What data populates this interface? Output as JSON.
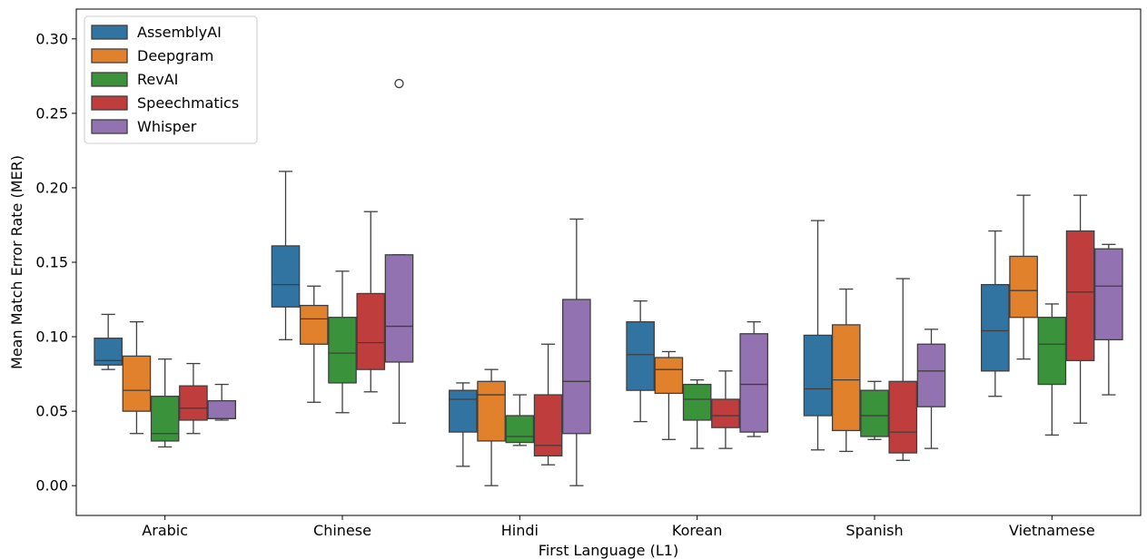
{
  "chart_data": {
    "type": "box",
    "xlabel": "First Language (L1)",
    "ylabel": "Mean Match Error Rate (MER)",
    "ylim": [
      -0.02,
      0.32
    ],
    "yticks": [
      "0.00",
      "0.05",
      "0.10",
      "0.15",
      "0.20",
      "0.25",
      "0.30"
    ],
    "categories": [
      "Arabic",
      "Chinese",
      "Hindi",
      "Korean",
      "Spanish",
      "Vietnamese"
    ],
    "legend_position": "upper-left",
    "series": [
      {
        "name": "AssemblyAI",
        "color": "#3274a1",
        "boxes": [
          {
            "whislo": 0.078,
            "q1": 0.081,
            "med": 0.084,
            "q3": 0.099,
            "whishi": 0.115,
            "fliers": []
          },
          {
            "whislo": 0.098,
            "q1": 0.12,
            "med": 0.135,
            "q3": 0.161,
            "whishi": 0.211,
            "fliers": []
          },
          {
            "whislo": 0.013,
            "q1": 0.036,
            "med": 0.058,
            "q3": 0.064,
            "whishi": 0.069,
            "fliers": []
          },
          {
            "whislo": 0.043,
            "q1": 0.064,
            "med": 0.088,
            "q3": 0.11,
            "whishi": 0.124,
            "fliers": []
          },
          {
            "whislo": 0.024,
            "q1": 0.047,
            "med": 0.065,
            "q3": 0.101,
            "whishi": 0.178,
            "fliers": []
          },
          {
            "whislo": 0.06,
            "q1": 0.077,
            "med": 0.104,
            "q3": 0.135,
            "whishi": 0.171,
            "fliers": []
          }
        ]
      },
      {
        "name": "Deepgram",
        "color": "#e1812c",
        "boxes": [
          {
            "whislo": 0.035,
            "q1": 0.05,
            "med": 0.064,
            "q3": 0.087,
            "whishi": 0.11,
            "fliers": []
          },
          {
            "whislo": 0.056,
            "q1": 0.095,
            "med": 0.112,
            "q3": 0.121,
            "whishi": 0.134,
            "fliers": []
          },
          {
            "whislo": 0.0,
            "q1": 0.03,
            "med": 0.061,
            "q3": 0.07,
            "whishi": 0.078,
            "fliers": []
          },
          {
            "whislo": 0.031,
            "q1": 0.062,
            "med": 0.078,
            "q3": 0.086,
            "whishi": 0.09,
            "fliers": []
          },
          {
            "whislo": 0.023,
            "q1": 0.037,
            "med": 0.071,
            "q3": 0.108,
            "whishi": 0.132,
            "fliers": []
          },
          {
            "whislo": 0.085,
            "q1": 0.113,
            "med": 0.131,
            "q3": 0.154,
            "whishi": 0.195,
            "fliers": []
          }
        ]
      },
      {
        "name": "RevAI",
        "color": "#3a923a",
        "boxes": [
          {
            "whislo": 0.026,
            "q1": 0.03,
            "med": 0.035,
            "q3": 0.06,
            "whishi": 0.085,
            "fliers": []
          },
          {
            "whislo": 0.049,
            "q1": 0.069,
            "med": 0.089,
            "q3": 0.113,
            "whishi": 0.144,
            "fliers": []
          },
          {
            "whislo": 0.027,
            "q1": 0.029,
            "med": 0.033,
            "q3": 0.047,
            "whishi": 0.061,
            "fliers": []
          },
          {
            "whislo": 0.025,
            "q1": 0.044,
            "med": 0.058,
            "q3": 0.068,
            "whishi": 0.071,
            "fliers": []
          },
          {
            "whislo": 0.031,
            "q1": 0.033,
            "med": 0.047,
            "q3": 0.064,
            "whishi": 0.07,
            "fliers": []
          },
          {
            "whislo": 0.034,
            "q1": 0.068,
            "med": 0.095,
            "q3": 0.113,
            "whishi": 0.122,
            "fliers": []
          }
        ]
      },
      {
        "name": "Speechmatics",
        "color": "#c03d3e",
        "boxes": [
          {
            "whislo": 0.035,
            "q1": 0.044,
            "med": 0.052,
            "q3": 0.067,
            "whishi": 0.082,
            "fliers": []
          },
          {
            "whislo": 0.063,
            "q1": 0.078,
            "med": 0.096,
            "q3": 0.129,
            "whishi": 0.184,
            "fliers": []
          },
          {
            "whislo": 0.014,
            "q1": 0.02,
            "med": 0.027,
            "q3": 0.061,
            "whishi": 0.095,
            "fliers": []
          },
          {
            "whislo": 0.025,
            "q1": 0.039,
            "med": 0.047,
            "q3": 0.058,
            "whishi": 0.077,
            "fliers": []
          },
          {
            "whislo": 0.017,
            "q1": 0.022,
            "med": 0.036,
            "q3": 0.07,
            "whishi": 0.139,
            "fliers": []
          },
          {
            "whislo": 0.042,
            "q1": 0.084,
            "med": 0.13,
            "q3": 0.171,
            "whishi": 0.195,
            "fliers": []
          }
        ]
      },
      {
        "name": "Whisper",
        "color": "#9372b2",
        "boxes": [
          {
            "whislo": 0.044,
            "q1": 0.045,
            "med": 0.045,
            "q3": 0.057,
            "whishi": 0.068,
            "fliers": []
          },
          {
            "whislo": 0.042,
            "q1": 0.083,
            "med": 0.107,
            "q3": 0.155,
            "whishi": 0.155,
            "fliers": [
              0.27
            ]
          },
          {
            "whislo": 0.0,
            "q1": 0.035,
            "med": 0.07,
            "q3": 0.125,
            "whishi": 0.179,
            "fliers": []
          },
          {
            "whislo": 0.033,
            "q1": 0.036,
            "med": 0.068,
            "q3": 0.102,
            "whishi": 0.11,
            "fliers": []
          },
          {
            "whislo": 0.025,
            "q1": 0.053,
            "med": 0.077,
            "q3": 0.095,
            "whishi": 0.105,
            "fliers": []
          },
          {
            "whislo": 0.061,
            "q1": 0.098,
            "med": 0.134,
            "q3": 0.159,
            "whishi": 0.162,
            "fliers": []
          }
        ]
      }
    ]
  }
}
